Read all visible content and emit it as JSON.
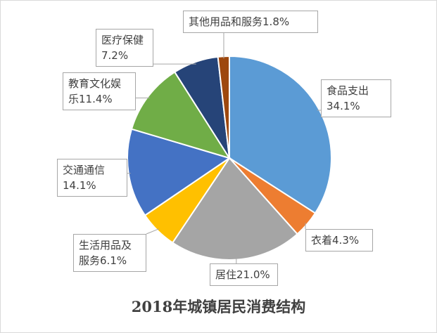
{
  "chart_data": {
    "type": "pie",
    "title": "2018年城镇居民消费结构",
    "categories": [
      "食品支出",
      "衣着",
      "居住",
      "生活用品及服务",
      "交通通信",
      "教育文化娱乐",
      "医疗保健",
      "其他用品和服务"
    ],
    "values": [
      34.1,
      4.3,
      21.0,
      6.1,
      14.1,
      11.4,
      7.2,
      1.8
    ],
    "value_labels": [
      "34.1%",
      "4.3%",
      "21.0%",
      "6.1%",
      "14.1%",
      "11.4%",
      "7.2%",
      "1.8%"
    ],
    "colors": [
      "#5b9bd5",
      "#ed7d31",
      "#a5a5a5",
      "#ffc000",
      "#4472c4",
      "#70ad47",
      "#264478",
      "#9e480e"
    ]
  }
}
